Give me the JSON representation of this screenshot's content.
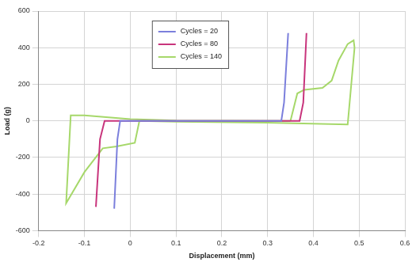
{
  "chart_data": {
    "type": "line",
    "x_label": "Displacement (mm)",
    "y_label": "Load (g)",
    "xlim": [
      -0.2,
      0.6
    ],
    "xticks": [
      -0.2,
      -0.1,
      0,
      0.1,
      0.2,
      0.3,
      0.4,
      0.5,
      0.6
    ],
    "ylim": [
      -600,
      600
    ],
    "yticks": [
      -600,
      -400,
      -200,
      0,
      200,
      400,
      600
    ],
    "grid": true,
    "legend": "top",
    "series": [
      {
        "name": "Cycles = 20",
        "color": "#7b7fdc",
        "x": [
          -0.035,
          -0.028,
          -0.022,
          0.1,
          0.33,
          0.336,
          0.345
        ],
        "values": [
          -480,
          -100,
          0,
          0,
          0,
          100,
          480
        ]
      },
      {
        "name": "Cycles = 80",
        "color": "#c8347c",
        "x": [
          -0.075,
          -0.066,
          -0.056,
          0.1,
          0.37,
          0.378,
          0.385
        ],
        "values": [
          -470,
          -100,
          0,
          0,
          0,
          100,
          480
        ]
      },
      {
        "name": "Cycles = 140",
        "color": "#a6d86a",
        "x": [
          0.35,
          0.365,
          0.38,
          0.42,
          0.44,
          0.455,
          0.475,
          0.488,
          0.49,
          0.475,
          0.3,
          0.1,
          0.02,
          0.01,
          -0.03,
          -0.06,
          -0.1,
          -0.14,
          -0.13,
          -0.1,
          0,
          0.1,
          0.35
        ],
        "values": [
          0,
          150,
          170,
          180,
          220,
          330,
          420,
          440,
          400,
          -20,
          -10,
          -5,
          0,
          -120,
          -140,
          -150,
          -280,
          -450,
          30,
          30,
          10,
          2,
          0
        ]
      }
    ]
  }
}
